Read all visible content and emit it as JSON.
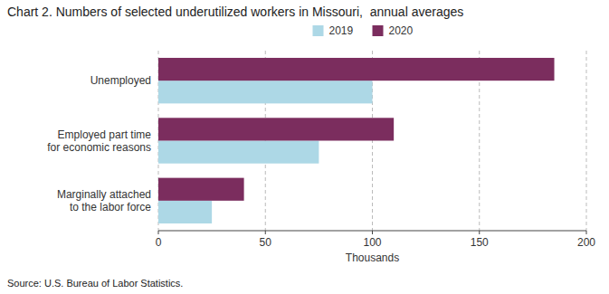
{
  "chart_data": {
    "type": "bar",
    "orientation": "horizontal",
    "title": "Chart 2. Numbers of selected underutilized workers in Missouri,  annual averages",
    "categories": [
      "Unemployed",
      "Employed part time\nfor economic reasons",
      "Marginally attached\nto the labor force"
    ],
    "series": [
      {
        "name": "2019",
        "color": "#add8e6",
        "values": [
          100,
          75,
          25
        ]
      },
      {
        "name": "2020",
        "color": "#7B2D5E",
        "values": [
          185,
          110,
          40
        ]
      }
    ],
    "xlim": [
      0,
      200
    ],
    "xticks": [
      0,
      50,
      100,
      150,
      200
    ],
    "xlabel": "Thousands",
    "grid": true,
    "legend": "top",
    "annotations": [
      "Source: U.S. Bureau of Labor Statistics."
    ]
  }
}
